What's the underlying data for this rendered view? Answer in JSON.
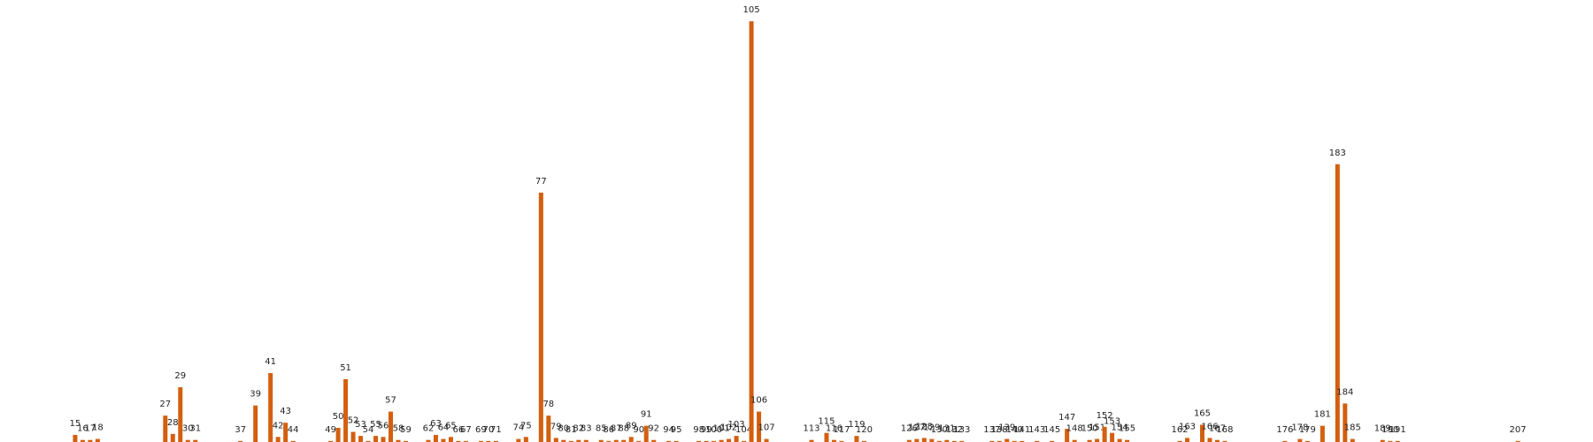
{
  "chart_data": {
    "type": "bar",
    "color": "#d35f0f",
    "x": [
      15,
      16,
      17,
      18,
      27,
      28,
      29,
      30,
      31,
      37,
      39,
      41,
      42,
      43,
      44,
      49,
      50,
      51,
      52,
      53,
      54,
      55,
      56,
      57,
      58,
      59,
      62,
      63,
      64,
      65,
      66,
      67,
      69,
      70,
      71,
      74,
      75,
      77,
      78,
      79,
      80,
      81,
      82,
      83,
      85,
      86,
      87,
      88,
      89,
      90,
      91,
      92,
      94,
      95,
      98,
      99,
      100,
      101,
      102,
      103,
      104,
      105,
      106,
      107,
      113,
      115,
      116,
      117,
      119,
      120,
      126,
      127,
      128,
      129,
      130,
      131,
      132,
      133,
      137,
      138,
      139,
      140,
      141,
      143,
      145,
      147,
      148,
      150,
      151,
      152,
      153,
      154,
      155,
      162,
      163,
      165,
      166,
      167,
      168,
      176,
      178,
      179,
      181,
      183,
      184,
      185,
      189,
      190,
      191,
      207
    ],
    "values": [
      7,
      2,
      2,
      3,
      26,
      8,
      54,
      2,
      2,
      1,
      36,
      68,
      5,
      19,
      1,
      1,
      14,
      62,
      10,
      6,
      1,
      6,
      5,
      30,
      2,
      1,
      2,
      7,
      3,
      5,
      1,
      1,
      1,
      1,
      1,
      3,
      5,
      246,
      26,
      4,
      2,
      1,
      2,
      2,
      2,
      1,
      2,
      2,
      5,
      1,
      16,
      2,
      1,
      1,
      1,
      1,
      1,
      2,
      3,
      6,
      1,
      415,
      30,
      3,
      2,
      9,
      2,
      1,
      6,
      1,
      2,
      3,
      4,
      3,
      1,
      2,
      1,
      1,
      1,
      1,
      3,
      1,
      1,
      1,
      1,
      13,
      2,
      2,
      3,
      15,
      9,
      3,
      2,
      1,
      4,
      17,
      4,
      2,
      1,
      1,
      3,
      1,
      16,
      274,
      38,
      3,
      2,
      1,
      1,
      1
    ],
    "xlim": [
      5,
      217
    ],
    "ylim": [
      0,
      436
    ]
  }
}
